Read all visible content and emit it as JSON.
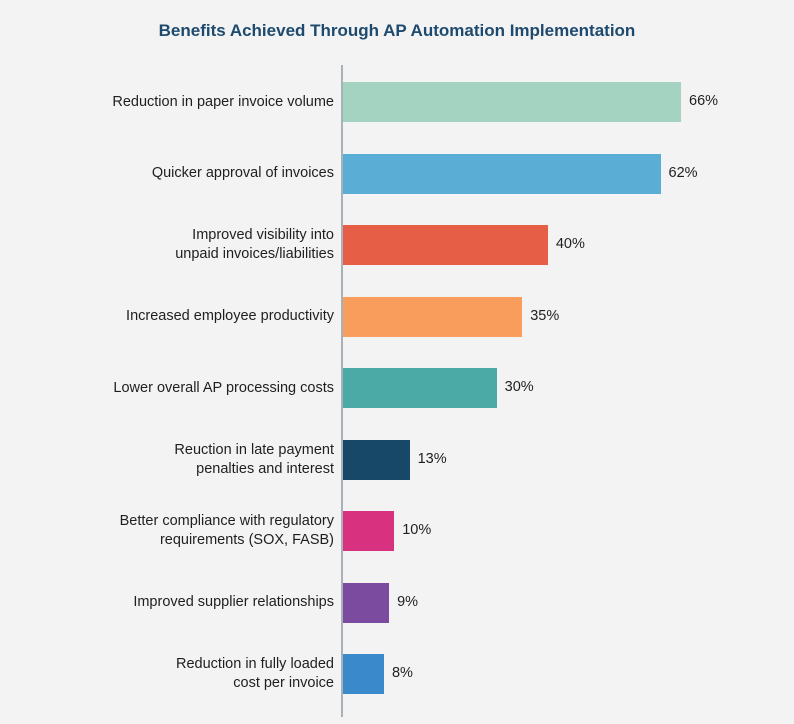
{
  "chart_data": {
    "type": "bar",
    "orientation": "horizontal",
    "title": "Benefits Achieved Through AP Automation Implementation",
    "categories": [
      "Reduction in paper invoice volume",
      "Quicker approval of invoices",
      "Improved visibility into\nunpaid invoices/liabilities",
      "Increased employee productivity",
      "Lower overall AP processing costs",
      "Reuction in late payment\npenalties and interest",
      "Better compliance with regulatory\nrequirements (SOX, FASB)",
      "Improved supplier relationships",
      "Reduction in fully loaded\ncost per invoice"
    ],
    "values": [
      66,
      62,
      40,
      35,
      30,
      13,
      10,
      9,
      8
    ],
    "value_labels": [
      "66%",
      "62%",
      "40%",
      "35%",
      "30%",
      "13%",
      "10%",
      "9%",
      "8%"
    ],
    "colors": [
      "#a5d3c1",
      "#5aaed6",
      "#e65e45",
      "#f89d5b",
      "#4baaa5",
      "#184868",
      "#d8317f",
      "#7a4b9e",
      "#3a8acb"
    ],
    "xlabel": "",
    "ylabel": "",
    "xlim": [
      0,
      66
    ],
    "grid": false,
    "legend": "none"
  }
}
